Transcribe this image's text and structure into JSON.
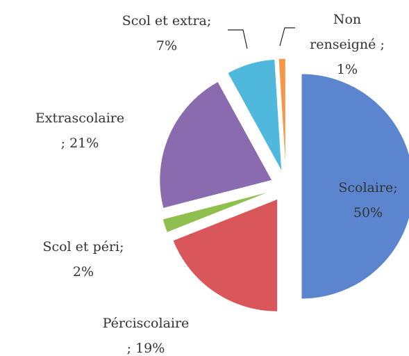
{
  "chart_data": {
    "type": "pie",
    "categories": [
      "Scolaire;",
      "Pérciscolaire",
      "Scol et péri;",
      "Extrascolaire",
      "Scol et extra;",
      "Non renseigné ;"
    ],
    "values": [
      50,
      19,
      2,
      21,
      7,
      1
    ],
    "value_labels": [
      "50%",
      "; 19%",
      "2%",
      "; 21%",
      "7%",
      "1%"
    ],
    "colors": [
      "#5b86cf",
      "#d9565a",
      "#8fbf4f",
      "#8a6bb0",
      "#4fb8dc",
      "#f79646"
    ]
  }
}
